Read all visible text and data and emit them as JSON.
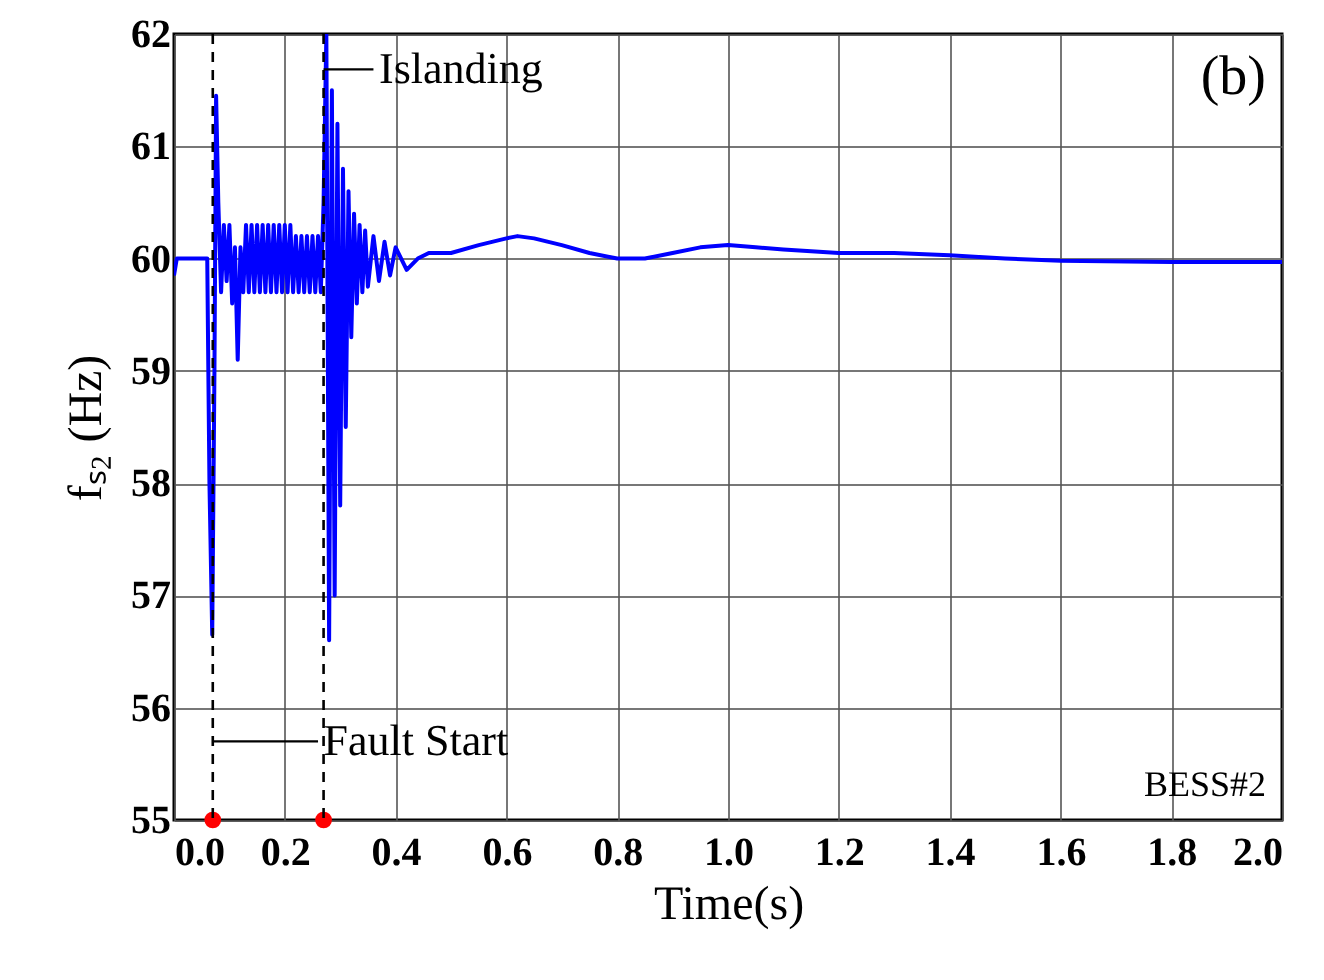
{
  "chart_data": {
    "type": "line",
    "xlabel": "Time(s)",
    "ylabel": "fₛ₂ (Hz)",
    "xlim": [
      0,
      2
    ],
    "xticks": [
      {
        "value": 0,
        "label": "0.0"
      },
      {
        "value": 0.2,
        "label": "0.2"
      },
      {
        "value": 0.4,
        "label": "0.4"
      },
      {
        "value": 0.6,
        "label": "0.6"
      },
      {
        "value": 0.8,
        "label": "0.8"
      },
      {
        "value": 1,
        "label": "1.0"
      },
      {
        "value": 1.2,
        "label": "1.2"
      },
      {
        "value": 1.4,
        "label": "1.4"
      },
      {
        "value": 1.6,
        "label": "1.6"
      },
      {
        "value": 1.8,
        "label": "1.8"
      },
      {
        "value": 2,
        "label": "2.0"
      }
    ],
    "ylim": [
      55,
      62
    ],
    "yticks": [
      55,
      56,
      57,
      58,
      59,
      60,
      61,
      62
    ],
    "grid": true,
    "series": [
      {
        "type": "line",
        "color": "#0000ff",
        "x": [
          0,
          0.005,
          0.03,
          0.06,
          0.064,
          0.069,
          0.073,
          0.076,
          0.08,
          0.085,
          0.09,
          0.095,
          0.1,
          0.105,
          0.11,
          0.115,
          0.12,
          0.125,
          0.13,
          0.135,
          0.14,
          0.145,
          0.15,
          0.155,
          0.16,
          0.165,
          0.17,
          0.175,
          0.18,
          0.185,
          0.19,
          0.195,
          0.2,
          0.205,
          0.21,
          0.215,
          0.22,
          0.225,
          0.23,
          0.235,
          0.24,
          0.245,
          0.25,
          0.255,
          0.26,
          0.265,
          0.27,
          0.275,
          0.28,
          0.285,
          0.29,
          0.295,
          0.3,
          0.305,
          0.31,
          0.315,
          0.32,
          0.325,
          0.33,
          0.335,
          0.34,
          0.345,
          0.35,
          0.36,
          0.37,
          0.38,
          0.39,
          0.4,
          0.42,
          0.44,
          0.46,
          0.5,
          0.55,
          0.6,
          0.62,
          0.65,
          0.7,
          0.75,
          0.8,
          0.85,
          0.9,
          0.95,
          1,
          1.05,
          1.1,
          1.2,
          1.3,
          1.4,
          1.5,
          1.6,
          1.8,
          2
        ],
        "values": [
          59.85,
          60,
          60,
          60,
          58,
          56.65,
          59,
          61.45,
          60.5,
          59.7,
          60.3,
          59.8,
          60.3,
          59.6,
          60.1,
          59.1,
          60.1,
          59.7,
          60.3,
          59.7,
          60.3,
          59.7,
          60.3,
          59.7,
          60.3,
          59.7,
          60.3,
          59.7,
          60.3,
          59.7,
          60.3,
          59.7,
          60.3,
          59.7,
          60.3,
          59.7,
          60.2,
          59.7,
          60.2,
          59.7,
          60.2,
          59.7,
          60.2,
          59.7,
          60.2,
          59.7,
          60.5,
          62,
          56.6,
          61.5,
          57,
          61.2,
          57.8,
          60.8,
          58.5,
          60.6,
          59.3,
          60.4,
          59.6,
          60.3,
          59.7,
          60.25,
          59.75,
          60.2,
          59.8,
          60.15,
          59.85,
          60.1,
          59.9,
          60,
          60.05,
          60.05,
          60.12,
          60.18,
          60.2,
          60.18,
          60.12,
          60.05,
          60,
          60,
          60.05,
          60.1,
          60.12,
          60.1,
          60.08,
          60.05,
          60.05,
          60.03,
          60,
          59.98,
          59.97,
          59.97
        ]
      },
      {
        "type": "scatter",
        "color": "#ff0000",
        "marker": "circle",
        "x": [
          0.07,
          0.27
        ],
        "values": [
          55,
          55
        ]
      }
    ],
    "ref_lines": [
      {
        "axis": "x",
        "value": 0.07,
        "label": "Fault Start",
        "color": "#000000",
        "line_style": "dashed"
      },
      {
        "axis": "x",
        "value": 0.27,
        "label": "Islanding",
        "color": "#000000",
        "line_style": "dashed"
      }
    ],
    "annotations": [
      "(b)",
      "BESS#2"
    ]
  }
}
